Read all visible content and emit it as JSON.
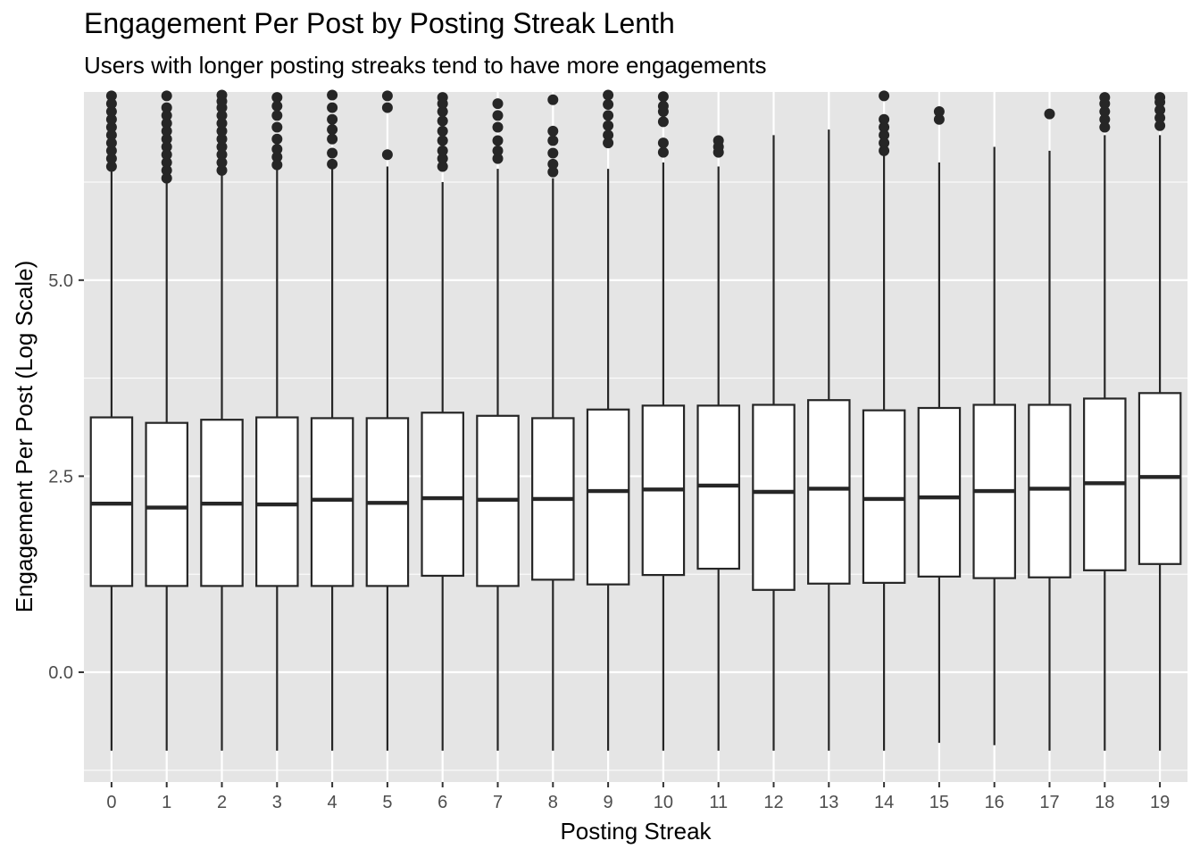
{
  "chart_data": {
    "type": "boxplot",
    "title": "Engagement Per Post by Posting Streak Lenth",
    "subtitle": "Users with longer posting streaks tend to have more engagements",
    "xlabel": "Posting Streak",
    "ylabel": "Engagement Per Post (Log Scale)",
    "categories": [
      "0",
      "1",
      "2",
      "3",
      "4",
      "5",
      "6",
      "7",
      "8",
      "9",
      "10",
      "11",
      "12",
      "13",
      "14",
      "15",
      "16",
      "17",
      "18",
      "19"
    ],
    "ylim": [
      -1.4,
      7.4
    ],
    "y_ticks": [
      0.0,
      2.5,
      5.0
    ],
    "y_tick_labels": [
      "0.0",
      "2.5",
      "5.0"
    ],
    "y_minor_ticks": [
      -1.25,
      1.25,
      3.75,
      6.25
    ],
    "grid": true,
    "boxes": [
      {
        "x": "0",
        "lower_whisker": -1.0,
        "q1": 1.1,
        "median": 2.15,
        "q3": 3.25,
        "upper_whisker": 6.4,
        "outliers": [
          6.45,
          6.55,
          6.65,
          6.75,
          6.85,
          6.95,
          7.05,
          7.15,
          7.25,
          7.35
        ]
      },
      {
        "x": "1",
        "lower_whisker": -1.0,
        "q1": 1.1,
        "median": 2.1,
        "q3": 3.18,
        "upper_whisker": 6.25,
        "outliers": [
          6.3,
          6.4,
          6.5,
          6.6,
          6.7,
          6.8,
          6.9,
          7.0,
          7.1,
          7.2,
          7.35
        ]
      },
      {
        "x": "2",
        "lower_whisker": -1.0,
        "q1": 1.1,
        "median": 2.15,
        "q3": 3.22,
        "upper_whisker": 6.35,
        "outliers": [
          6.4,
          6.5,
          6.6,
          6.7,
          6.8,
          6.9,
          7.0,
          7.1,
          7.2,
          7.28,
          7.36
        ]
      },
      {
        "x": "3",
        "lower_whisker": -1.0,
        "q1": 1.1,
        "median": 2.14,
        "q3": 3.25,
        "upper_whisker": 6.42,
        "outliers": [
          6.47,
          6.57,
          6.67,
          6.8,
          6.95,
          7.1,
          7.22,
          7.33
        ]
      },
      {
        "x": "4",
        "lower_whisker": -1.0,
        "q1": 1.1,
        "median": 2.2,
        "q3": 3.24,
        "upper_whisker": 6.42,
        "outliers": [
          6.48,
          6.62,
          6.8,
          6.92,
          7.05,
          7.2,
          7.36
        ]
      },
      {
        "x": "5",
        "lower_whisker": -1.0,
        "q1": 1.1,
        "median": 2.16,
        "q3": 3.24,
        "upper_whisker": 6.45,
        "outliers": [
          6.6,
          7.2,
          7.35
        ]
      },
      {
        "x": "6",
        "lower_whisker": -1.0,
        "q1": 1.23,
        "median": 2.22,
        "q3": 3.31,
        "upper_whisker": 6.25,
        "outliers": [
          6.45,
          6.55,
          6.65,
          6.78,
          6.9,
          7.03,
          7.15,
          7.25,
          7.33
        ]
      },
      {
        "x": "7",
        "lower_whisker": -1.0,
        "q1": 1.1,
        "median": 2.2,
        "q3": 3.27,
        "upper_whisker": 6.42,
        "outliers": [
          6.55,
          6.65,
          6.78,
          6.95,
          7.1,
          7.25
        ]
      },
      {
        "x": "8",
        "lower_whisker": -1.0,
        "q1": 1.18,
        "median": 2.21,
        "q3": 3.24,
        "upper_whisker": 6.3,
        "outliers": [
          6.38,
          6.48,
          6.62,
          6.78,
          6.9,
          7.3
        ]
      },
      {
        "x": "9",
        "lower_whisker": -1.0,
        "q1": 1.12,
        "median": 2.31,
        "q3": 3.35,
        "upper_whisker": 6.42,
        "outliers": [
          6.75,
          6.85,
          6.97,
          7.1,
          7.24,
          7.36
        ]
      },
      {
        "x": "10",
        "lower_whisker": -1.0,
        "q1": 1.24,
        "median": 2.33,
        "q3": 3.4,
        "upper_whisker": 6.5,
        "outliers": [
          6.63,
          6.75,
          7.02,
          7.15,
          7.22,
          7.34
        ]
      },
      {
        "x": "11",
        "lower_whisker": -1.0,
        "q1": 1.32,
        "median": 2.38,
        "q3": 3.4,
        "upper_whisker": 6.45,
        "outliers": [
          6.63,
          6.7,
          6.78
        ]
      },
      {
        "x": "12",
        "lower_whisker": -1.0,
        "q1": 1.05,
        "median": 2.3,
        "q3": 3.41,
        "upper_whisker": 6.85,
        "outliers": []
      },
      {
        "x": "13",
        "lower_whisker": -1.0,
        "q1": 1.13,
        "median": 2.34,
        "q3": 3.47,
        "upper_whisker": 6.92,
        "outliers": []
      },
      {
        "x": "14",
        "lower_whisker": -1.0,
        "q1": 1.14,
        "median": 2.21,
        "q3": 3.34,
        "upper_whisker": 6.6,
        "outliers": [
          6.65,
          6.75,
          6.85,
          6.95,
          7.05,
          7.35
        ]
      },
      {
        "x": "15",
        "lower_whisker": -0.9,
        "q1": 1.22,
        "median": 2.23,
        "q3": 3.37,
        "upper_whisker": 6.5,
        "outliers": [
          7.05,
          7.15
        ]
      },
      {
        "x": "16",
        "lower_whisker": -0.93,
        "q1": 1.2,
        "median": 2.31,
        "q3": 3.41,
        "upper_whisker": 6.7,
        "outliers": []
      },
      {
        "x": "17",
        "lower_whisker": -1.0,
        "q1": 1.21,
        "median": 2.34,
        "q3": 3.41,
        "upper_whisker": 6.65,
        "outliers": [
          7.12
        ]
      },
      {
        "x": "18",
        "lower_whisker": -1.0,
        "q1": 1.3,
        "median": 2.41,
        "q3": 3.49,
        "upper_whisker": 6.85,
        "outliers": [
          6.95,
          7.05,
          7.15,
          7.25,
          7.33
        ]
      },
      {
        "x": "19",
        "lower_whisker": -1.0,
        "q1": 1.38,
        "median": 2.49,
        "q3": 3.56,
        "upper_whisker": 6.85,
        "outliers": [
          6.97,
          7.07,
          7.17,
          7.27,
          7.33
        ]
      }
    ]
  },
  "colors": {
    "panel_background": "#e5e5e5",
    "grid_major": "#ffffff",
    "box_fill": "#ffffff",
    "box_stroke": "#262626",
    "outlier": "#262626",
    "tick_text": "#4d4d4d",
    "tick_mark": "#333333"
  }
}
